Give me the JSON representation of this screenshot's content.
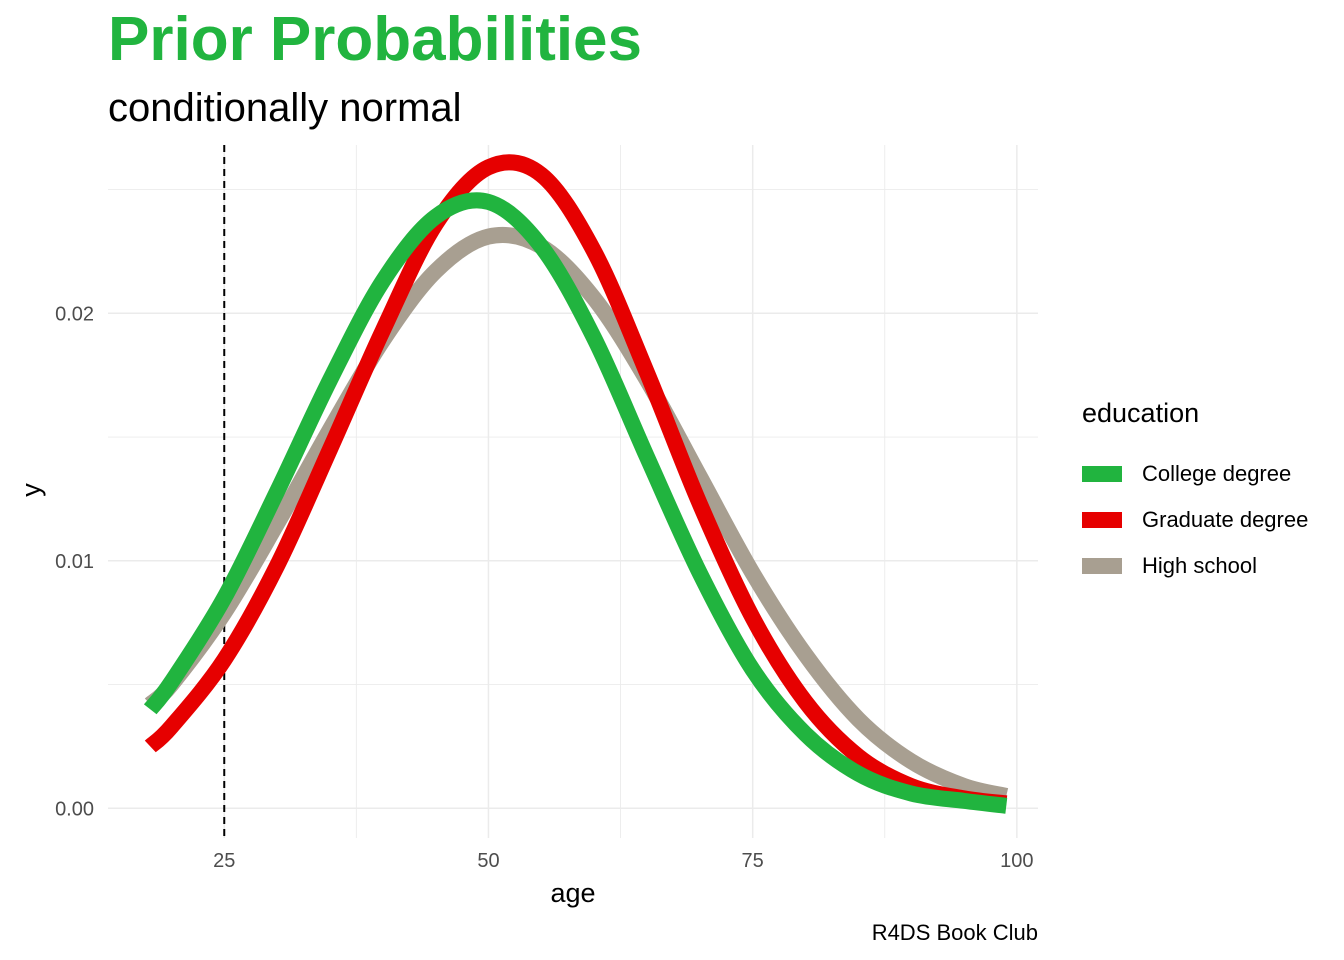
{
  "chart_data": {
    "type": "line",
    "title": "Prior Probabilities",
    "subtitle": "conditionally normal",
    "caption": "R4DS Book Club",
    "xlabel": "age",
    "ylabel": "y",
    "xlim": [
      14,
      102
    ],
    "ylim": [
      -0.0012,
      0.0268
    ],
    "xticks": [
      25,
      50,
      75,
      100
    ],
    "yticks": [
      0.0,
      0.01,
      0.02
    ],
    "ytick_labels": [
      "0.00",
      "0.01",
      "0.02"
    ],
    "vline": 25,
    "legend": {
      "title": "education",
      "placement": "right"
    },
    "grid": true,
    "series": [
      {
        "name": "High school",
        "color": "#A89F91",
        "x": [
          18,
          20,
          25,
          30,
          35,
          40,
          45,
          50,
          55,
          60,
          65,
          70,
          75,
          80,
          85,
          90,
          95,
          99
        ],
        "y": [
          0.0042,
          0.005,
          0.0079,
          0.0115,
          0.0153,
          0.0189,
          0.0217,
          0.0231,
          0.0227,
          0.0206,
          0.0173,
          0.0134,
          0.0095,
          0.0062,
          0.0036,
          0.0019,
          0.0009,
          0.0005
        ]
      },
      {
        "name": "Graduate degree",
        "color": "#E60000",
        "x": [
          18,
          20,
          25,
          30,
          35,
          40,
          45,
          50,
          55,
          60,
          65,
          70,
          75,
          80,
          85,
          90,
          95,
          99
        ],
        "y": [
          0.0025,
          0.0033,
          0.006,
          0.0098,
          0.0145,
          0.0193,
          0.0236,
          0.0259,
          0.0256,
          0.0225,
          0.0176,
          0.0123,
          0.0077,
          0.0043,
          0.0021,
          0.0009,
          0.0004,
          0.0002
        ]
      },
      {
        "name": "College degree",
        "color": "#21B43F",
        "x": [
          18,
          20,
          25,
          30,
          35,
          40,
          45,
          50,
          55,
          60,
          65,
          70,
          75,
          80,
          85,
          90,
          95,
          99
        ],
        "y": [
          0.004,
          0.0051,
          0.0085,
          0.0128,
          0.0173,
          0.0213,
          0.0239,
          0.0245,
          0.0227,
          0.019,
          0.0142,
          0.0095,
          0.0056,
          0.003,
          0.0014,
          0.0006,
          0.0003,
          0.0001
        ]
      }
    ],
    "legend_order": [
      "College degree",
      "Graduate degree",
      "High school"
    ]
  },
  "colors": {
    "title": "#21B43F",
    "grid": "#EBEBEB",
    "college": "#21B43F",
    "graduate": "#E60000",
    "highschool": "#A89F91"
  }
}
